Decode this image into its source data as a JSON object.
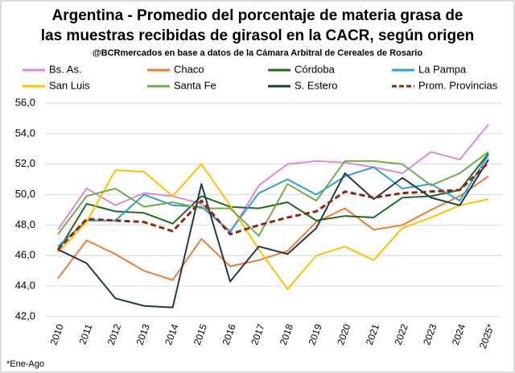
{
  "chart_data": {
    "type": "line",
    "title": [
      "Argentina - Promedio del porcentaje de materia grasa de",
      "las muestras recibidas de girasol en la CACR, según origen"
    ],
    "subtitle": "@BCRmercados en base a datos de la Cámara Arbitral de Cereales de Rosario",
    "footnote": "*Ene-Ago",
    "categories": [
      "2010",
      "2011",
      "2012",
      "2013",
      "2014",
      "2015",
      "2016",
      "2017",
      "2018",
      "2019",
      "2020",
      "2021",
      "2022",
      "2023",
      "2024",
      "2025*"
    ],
    "ylim": [
      42,
      56
    ],
    "yticks": [
      {
        "value": 42,
        "label": "42,0"
      },
      {
        "value": 44,
        "label": "44,0"
      },
      {
        "value": 46,
        "label": "46,0"
      },
      {
        "value": 48,
        "label": "48,0"
      },
      {
        "value": 50,
        "label": "50,0"
      },
      {
        "value": 52,
        "label": "52,0"
      },
      {
        "value": 54,
        "label": "54,0"
      },
      {
        "value": 56,
        "label": "56,0"
      }
    ],
    "grid": true,
    "legend": "top",
    "series": [
      {
        "name": "Bs. As.",
        "color": "#d98ad9",
        "values": [
          47.7,
          50.4,
          49.3,
          50.1,
          49.9,
          49.4,
          47.5,
          50.6,
          52.0,
          52.2,
          52.1,
          51.8,
          51.4,
          52.8,
          52.3,
          54.6
        ]
      },
      {
        "name": "Chaco",
        "color": "#ed7d31",
        "values": [
          44.5,
          47.0,
          46.1,
          45.0,
          44.4,
          47.1,
          45.3,
          45.7,
          46.3,
          48.2,
          49.1,
          47.7,
          48.0,
          49.0,
          49.9,
          51.2
        ]
      },
      {
        "name": "Córdoba",
        "color": "#1e6b1e",
        "values": [
          46.3,
          49.4,
          48.9,
          48.8,
          48.1,
          49.9,
          49.2,
          49.1,
          49.5,
          48.3,
          48.6,
          48.5,
          49.8,
          49.9,
          50.3,
          52.7
        ]
      },
      {
        "name": "La Pampa",
        "color": "#2aa0d8",
        "values": [
          46.6,
          48.3,
          48.3,
          50.0,
          49.3,
          49.2,
          47.6,
          50.1,
          51.0,
          50.0,
          51.2,
          51.8,
          50.4,
          50.7,
          49.6,
          52.6
        ]
      },
      {
        "name": "San Luis",
        "color": "#ffc000",
        "values": [
          46.2,
          48.2,
          51.6,
          51.5,
          49.9,
          52.0,
          49.3,
          46.4,
          43.8,
          46.0,
          46.6,
          45.7,
          47.8,
          48.5,
          49.3,
          49.7
        ]
      },
      {
        "name": "Santa Fe",
        "color": "#70ad47",
        "values": [
          47.4,
          49.9,
          50.4,
          49.2,
          49.5,
          49.1,
          49.1,
          47.3,
          50.7,
          49.6,
          52.2,
          52.2,
          52.0,
          50.6,
          51.4,
          52.8
        ]
      },
      {
        "name": "S. Estero",
        "color": "#1f3a4d",
        "values": [
          46.4,
          45.5,
          43.2,
          42.7,
          42.6,
          50.7,
          44.3,
          46.6,
          46.1,
          47.8,
          51.4,
          49.7,
          51.1,
          49.8,
          49.3,
          52.3
        ]
      },
      {
        "name": "Prom. Provincias",
        "color": "#8b2a10",
        "dashed": true,
        "values": [
          46.4,
          48.4,
          48.3,
          48.2,
          47.6,
          49.6,
          47.4,
          48.0,
          48.5,
          48.9,
          50.2,
          49.8,
          50.1,
          50.2,
          50.3,
          52.1
        ]
      }
    ]
  }
}
